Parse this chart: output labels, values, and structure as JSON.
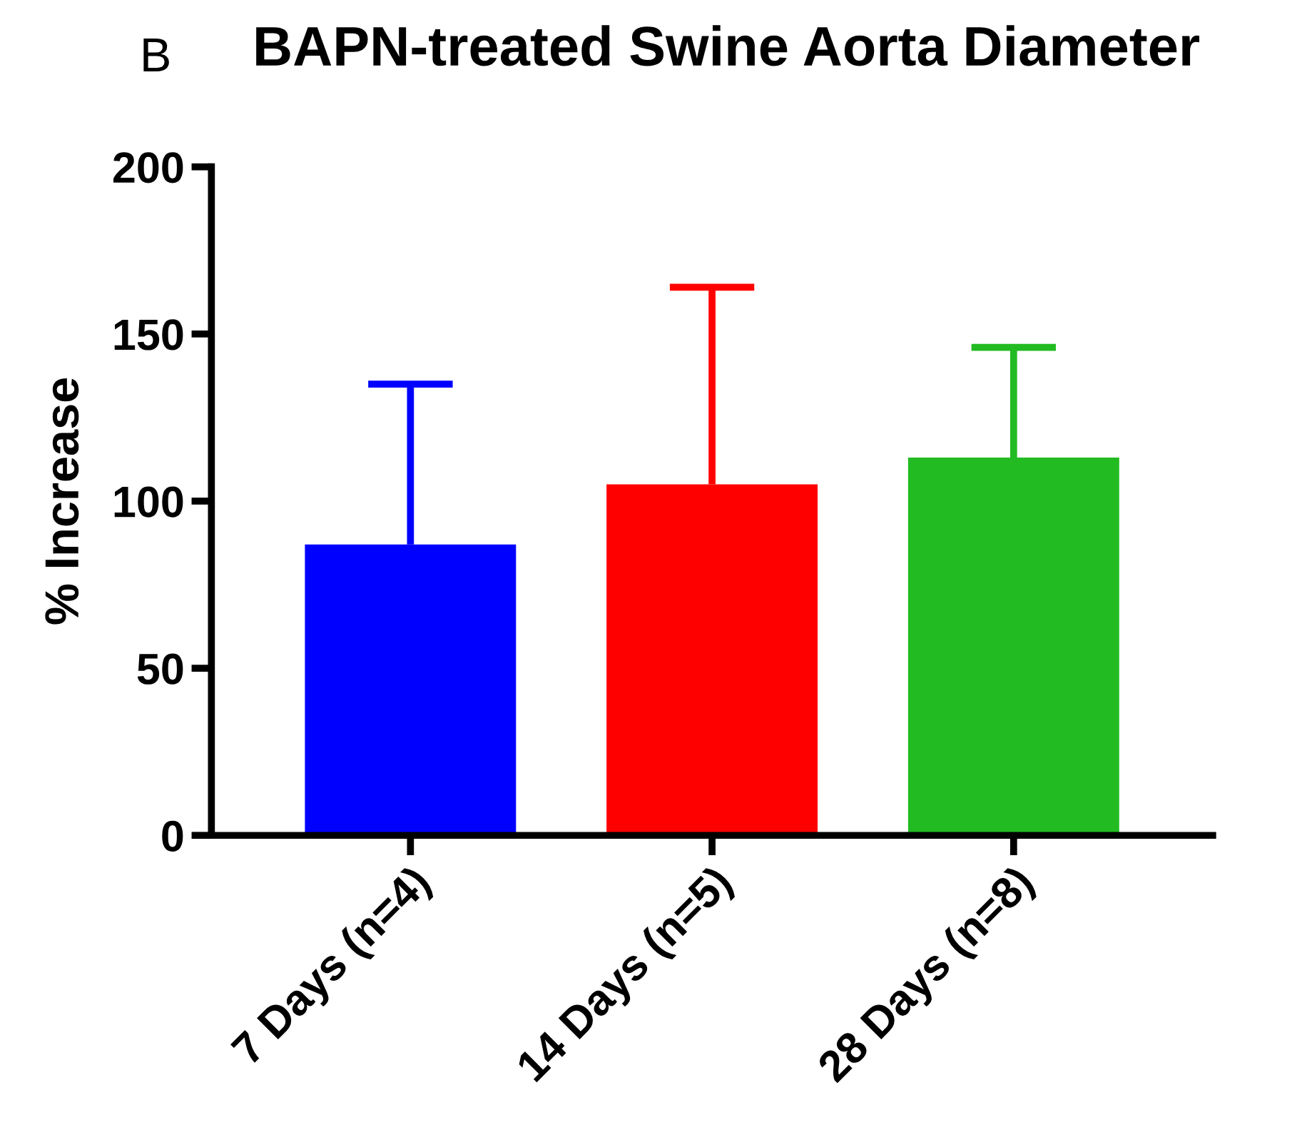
{
  "chart_data": {
    "type": "bar",
    "title": "BAPN-treated Swine Aorta Diameter",
    "ylabel": "% Increase",
    "annotations": [
      "B"
    ],
    "categories": [
      "7 Days (n=4)",
      "14 Days (n=5)",
      "28 Days (n=8)"
    ],
    "values": [
      87,
      105,
      113
    ],
    "colors": [
      "#0000ff",
      "#ff0000",
      "#22bb22"
    ],
    "errors": [
      [
        87,
        135
      ],
      [
        105,
        164
      ],
      [
        113,
        146
      ]
    ],
    "ylim": [
      0,
      200
    ],
    "yticks": [
      0,
      50,
      100,
      150,
      200
    ],
    "grid": false,
    "legend": false
  }
}
